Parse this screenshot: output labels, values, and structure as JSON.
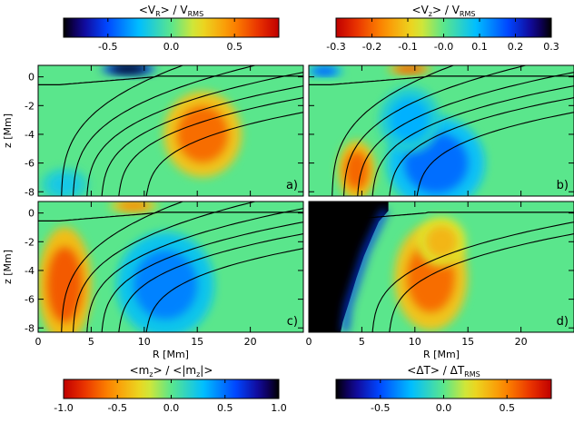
{
  "chart_data": [
    {
      "type": "heatmap",
      "panel": "a)",
      "colorbar": {
        "title_main": "<V",
        "title_sub": "R",
        "title_rest": "> / V",
        "title_sub2": "RMS",
        "colormap": "rainbow-blue-to-red",
        "range": [
          -0.85,
          0.85
        ],
        "ticks": [
          -0.5,
          0.0,
          0.5
        ],
        "tick_labels": [
          "-0.5",
          "0.0",
          "0.5"
        ]
      },
      "x": {
        "label": "",
        "range": [
          0,
          25
        ],
        "ticks": [
          0,
          5,
          10,
          15,
          20
        ],
        "tick_labels": [
          "",
          "",
          "",
          "",
          ""
        ]
      },
      "y": {
        "label": "z [Mm]",
        "range": [
          -8.3,
          0.8
        ],
        "ticks": [
          0,
          -2,
          -4,
          -6,
          -8
        ],
        "tick_labels": [
          "0",
          "-2",
          "-4",
          "-6",
          "-8"
        ]
      },
      "features": [
        {
          "kind": "blob",
          "R": 15.5,
          "z": -4.0,
          "rx": 3.2,
          "rz": 2.6,
          "value": 0.55
        },
        {
          "kind": "blob",
          "R": 8.5,
          "z": 0.55,
          "rx": 2.2,
          "rz": 0.35,
          "value": -1.0
        },
        {
          "kind": "blob",
          "R": 2.5,
          "z": -7.5,
          "rx": 2.0,
          "rz": 1.0,
          "value": -0.2
        }
      ],
      "field_lines": [
        2.2,
        3.3,
        4.6,
        6.0,
        7.6,
        10.2
      ]
    },
    {
      "type": "heatmap",
      "panel": "b)",
      "colorbar": {
        "title_main": "<V",
        "title_sub": "z",
        "title_rest": "> / V",
        "title_sub2": "RMS",
        "colormap": "reversed-rainbow-red-to-black",
        "range": [
          -0.3,
          0.3
        ],
        "ticks": [
          -0.3,
          -0.2,
          -0.1,
          0.0,
          0.1,
          0.2,
          0.3
        ],
        "tick_labels": [
          "-0.3",
          "-0.2",
          "-0.1",
          "-0.0",
          "0.1",
          "0.2",
          "0.3"
        ]
      },
      "x": {
        "label": "",
        "range": [
          0,
          25
        ],
        "ticks": [
          0,
          5,
          10,
          15,
          20
        ],
        "tick_labels": [
          "",
          "",
          "",
          "",
          ""
        ]
      },
      "y": {
        "label": "",
        "range": [
          -8.3,
          0.8
        ],
        "ticks": [
          0,
          -2,
          -4,
          -6,
          -8
        ],
        "tick_labels": [
          "",
          "",
          "",
          "",
          ""
        ]
      },
      "features": [
        {
          "kind": "blob",
          "R": 12.0,
          "z": -6.0,
          "rx": 4.0,
          "rz": 2.8,
          "value": 0.15
        },
        {
          "kind": "blob",
          "R": 9.5,
          "z": -3.0,
          "rx": 2.5,
          "rz": 2.0,
          "value": 0.1
        },
        {
          "kind": "blob",
          "R": 4.5,
          "z": -6.5,
          "rx": 1.5,
          "rz": 1.8,
          "value": -0.2
        },
        {
          "kind": "blob",
          "R": 9.5,
          "z": 0.55,
          "rx": 1.8,
          "rz": 0.3,
          "value": -0.22
        },
        {
          "kind": "blob",
          "R": 1.5,
          "z": 0.4,
          "rx": 1.5,
          "rz": 0.3,
          "value": 0.18
        }
      ],
      "field_lines": [
        2.2,
        3.3,
        4.6,
        6.0,
        7.6,
        10.2
      ]
    },
    {
      "type": "heatmap",
      "panel": "c)",
      "colorbar": {
        "title_main": "<m",
        "title_sub": "z",
        "title_rest": "> / <|m",
        "title_sub2": "z",
        "title_end": "|>",
        "colormap": "reversed-rainbow-red-to-black",
        "range": [
          -1.0,
          1.0
        ],
        "ticks": [
          -1.0,
          -0.5,
          0.0,
          0.5,
          1.0
        ],
        "tick_labels": [
          "-1.0",
          "-0.5",
          "0.0",
          "0.5",
          "1.0"
        ]
      },
      "x": {
        "label": "R [Mm]",
        "range": [
          0,
          25
        ],
        "ticks": [
          0,
          5,
          10,
          15,
          20
        ],
        "tick_labels": [
          "0",
          "5",
          "10",
          "15",
          "20"
        ]
      },
      "y": {
        "label": "z [Mm]",
        "range": [
          -8.3,
          0.8
        ],
        "ticks": [
          0,
          -2,
          -4,
          -6,
          -8
        ],
        "tick_labels": [
          "0",
          "-2",
          "-4",
          "-6",
          "-8"
        ]
      },
      "features": [
        {
          "kind": "blob",
          "R": 12.0,
          "z": -5.0,
          "rx": 4.0,
          "rz": 3.2,
          "value": 0.45
        },
        {
          "kind": "blob",
          "R": 2.5,
          "z": -5.0,
          "rx": 2.2,
          "rz": 3.5,
          "value": -0.7
        },
        {
          "kind": "blob",
          "R": 9.0,
          "z": 0.5,
          "rx": 2.0,
          "rz": 0.35,
          "value": -0.6
        }
      ],
      "field_lines": [
        2.2,
        3.3,
        4.6,
        6.0,
        7.6,
        10.2
      ]
    },
    {
      "type": "heatmap",
      "panel": "d)",
      "colorbar": {
        "title_main": "<ΔT> / ΔT",
        "title_sub": "RMS",
        "colormap": "rainbow-black-to-red",
        "range": [
          -0.85,
          0.85
        ],
        "ticks": [
          -0.5,
          0.0,
          0.5
        ],
        "tick_labels": [
          "-0.5",
          "0.0",
          "0.5"
        ]
      },
      "x": {
        "label": "R [Mm]",
        "range": [
          0,
          25
        ],
        "ticks": [
          0,
          5,
          10,
          15,
          20
        ],
        "tick_labels": [
          "0",
          "5",
          "10",
          "15",
          "20"
        ]
      },
      "y": {
        "label": "",
        "range": [
          -8.3,
          0.8
        ],
        "ticks": [
          0,
          -2,
          -4,
          -6,
          -8
        ],
        "tick_labels": [
          "",
          "",
          "",
          "",
          ""
        ]
      },
      "features": [
        {
          "kind": "blob",
          "R": 11.5,
          "z": -4.5,
          "rx": 3.0,
          "rz": 3.2,
          "value": 0.55
        },
        {
          "kind": "blob",
          "R": 12.5,
          "z": -2.0,
          "rx": 2.0,
          "rz": 1.5,
          "value": 0.35
        },
        {
          "kind": "umbra",
          "value": -1.0
        }
      ],
      "field_lines": [
        6.0,
        7.6
      ]
    }
  ]
}
